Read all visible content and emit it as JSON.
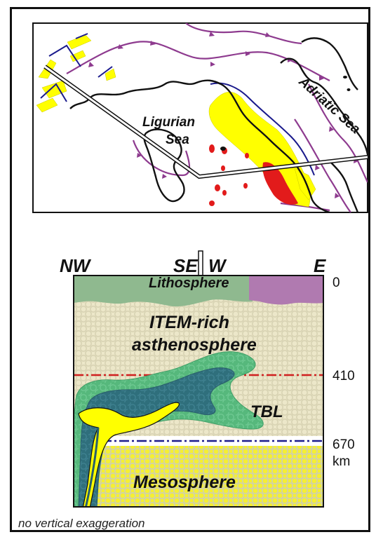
{
  "map": {
    "sea_labels": {
      "ligurian_line1": "Ligurian",
      "ligurian_line2": "Sea",
      "adriatic": "Adriatic Sea"
    },
    "colors": {
      "coast": "#111111",
      "thrust": "#8e3b8f",
      "fault": "#1a1a8c",
      "volcanic_yellow": "#ffff00",
      "volcanic_red": "#e21b1b"
    }
  },
  "section": {
    "direction_labels": [
      "NW",
      "SE",
      "W",
      "E"
    ],
    "layers": {
      "lithosphere": "Lithosphere",
      "asthenosphere_line1": "ITEM-rich",
      "asthenosphere_line2": "asthenosphere",
      "tbl": "TBL",
      "mesosphere": "Mesosphere"
    },
    "depths": [
      "0",
      "410",
      "670"
    ],
    "depth_unit": "km",
    "colors": {
      "lithosphere_green": "#8fb98f",
      "lithosphere_purple": "#b07ab0",
      "asthenosphere_bg": "#ece7c9",
      "mesosphere_bg": "#f4ef34",
      "tbl_outer": "#56b87c",
      "tbl_inner": "#2f6f7c",
      "slab_yellow": "#ffff00",
      "line_410": "#d02020",
      "line_670": "#1c1c8c"
    }
  },
  "caption": "no vertical exaggeration"
}
